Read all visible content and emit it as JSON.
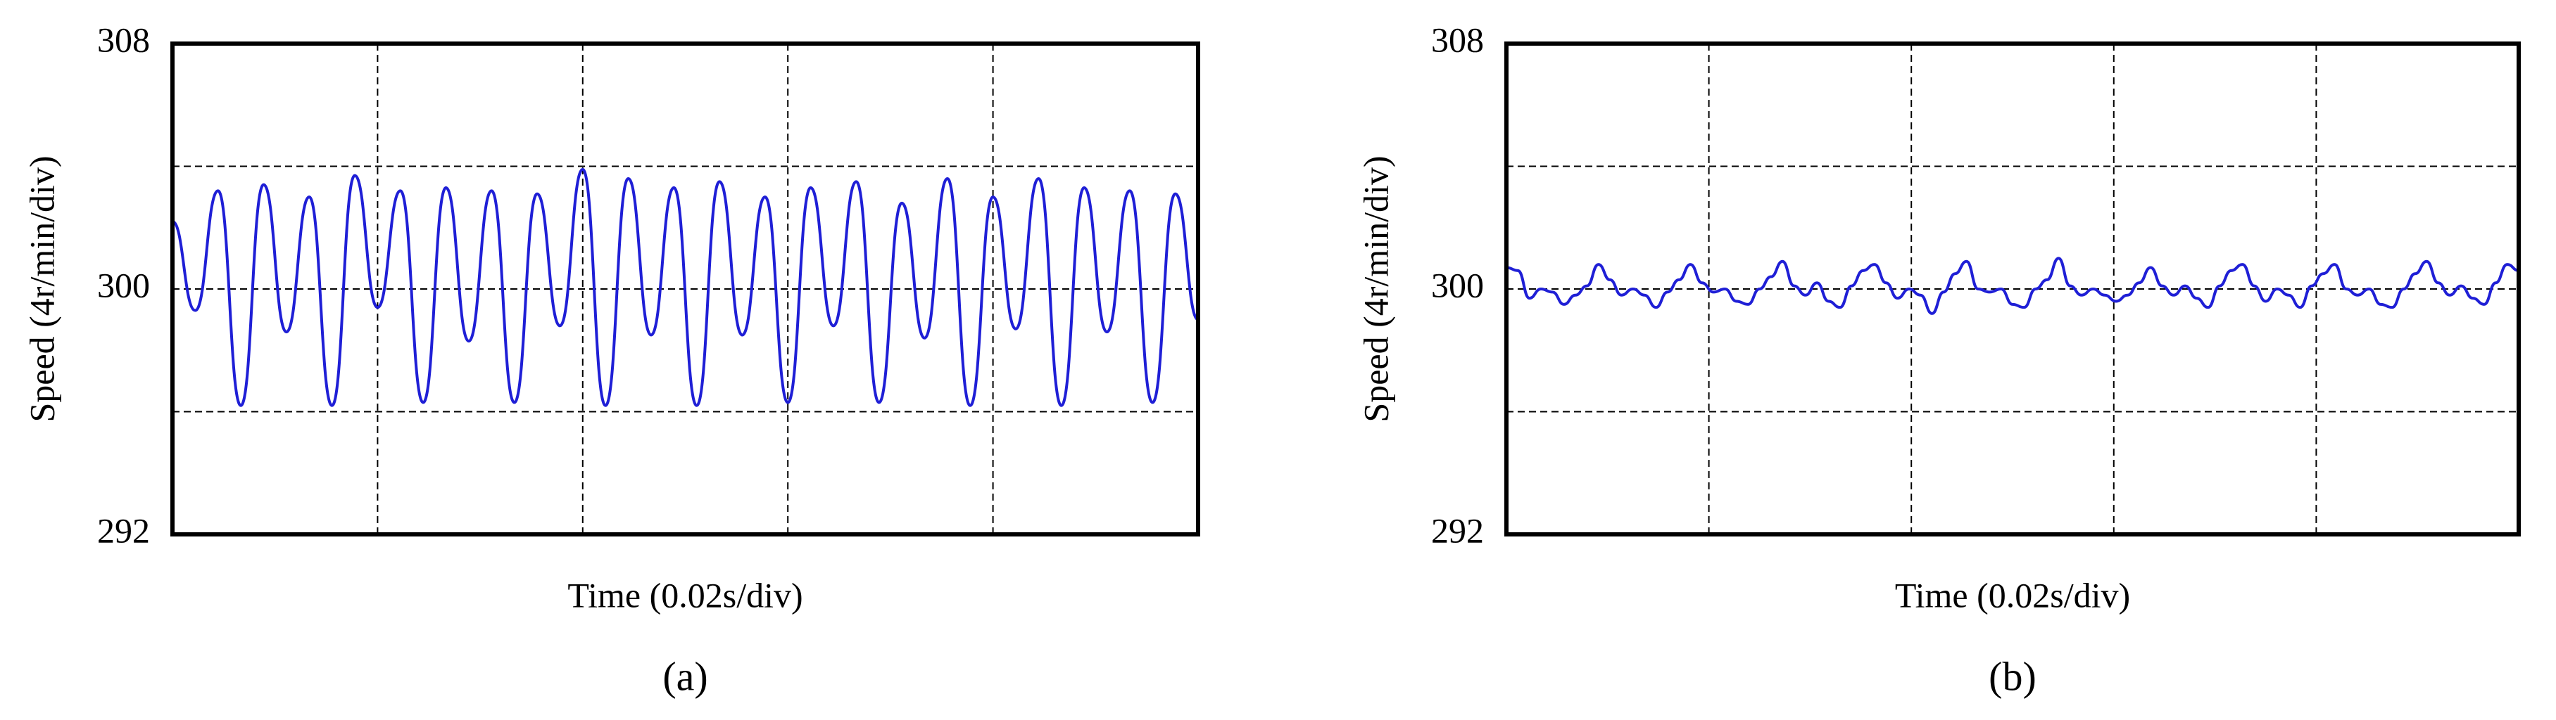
{
  "chart_data": [
    {
      "type": "line",
      "caption": "(a)",
      "ylabel": "Speed (4r/min/div)",
      "xlabel": "Time (0.02s/div)",
      "ylim": [
        292,
        308
      ],
      "yticks": [
        292,
        300,
        308
      ],
      "ygrid": [
        292,
        296,
        300,
        304,
        308
      ],
      "xdivisions": 5,
      "color": "#1f1fd6",
      "values": [
        302.2,
        299.3,
        303.2,
        296.2,
        303.4,
        298.6,
        303.0,
        296.2,
        303.7,
        299.4,
        303.2,
        296.3,
        303.3,
        298.3,
        303.2,
        296.3,
        303.1,
        298.8,
        303.9,
        296.2,
        303.6,
        298.5,
        303.3,
        296.2,
        303.5,
        298.5,
        303.0,
        296.3,
        303.3,
        298.8,
        303.5,
        296.3,
        302.8,
        298.4,
        303.6,
        296.2,
        303.0,
        298.7,
        303.6,
        296.2,
        303.3,
        298.6,
        303.2,
        296.3,
        303.1,
        299.0
      ]
    },
    {
      "type": "line",
      "caption": "(b)",
      "ylabel": "Speed (4r/min/div)",
      "xlabel": "Time (0.02s/div)",
      "ylim": [
        292,
        308
      ],
      "yticks": [
        292,
        300,
        308
      ],
      "ygrid": [
        292,
        296,
        300,
        304,
        308
      ],
      "xdivisions": 5,
      "color": "#1f1fd6",
      "values": [
        300.7,
        300.6,
        299.7,
        300.0,
        299.9,
        299.5,
        299.8,
        300.1,
        300.8,
        300.3,
        299.8,
        300.0,
        299.8,
        299.4,
        299.9,
        300.3,
        300.8,
        300.2,
        299.9,
        300.0,
        299.6,
        299.5,
        300.0,
        300.4,
        300.9,
        300.1,
        299.8,
        300.2,
        299.6,
        299.4,
        300.1,
        300.6,
        300.8,
        300.2,
        299.7,
        300.0,
        299.8,
        299.2,
        299.9,
        300.5,
        300.9,
        300.0,
        299.9,
        300.0,
        299.5,
        299.4,
        300.0,
        300.3,
        301.0,
        300.1,
        299.8,
        300.0,
        299.8,
        299.6,
        299.8,
        300.2,
        300.7,
        300.1,
        299.8,
        300.1,
        299.7,
        299.4,
        300.1,
        300.6,
        300.8,
        300.1,
        299.6,
        300.0,
        299.8,
        299.4,
        300.1,
        300.5,
        300.8,
        300.0,
        299.8,
        300.0,
        299.5,
        299.4,
        300.0,
        300.5,
        300.9,
        300.2,
        299.8,
        300.1,
        299.7,
        299.5,
        300.2,
        300.8,
        300.6
      ]
    }
  ]
}
